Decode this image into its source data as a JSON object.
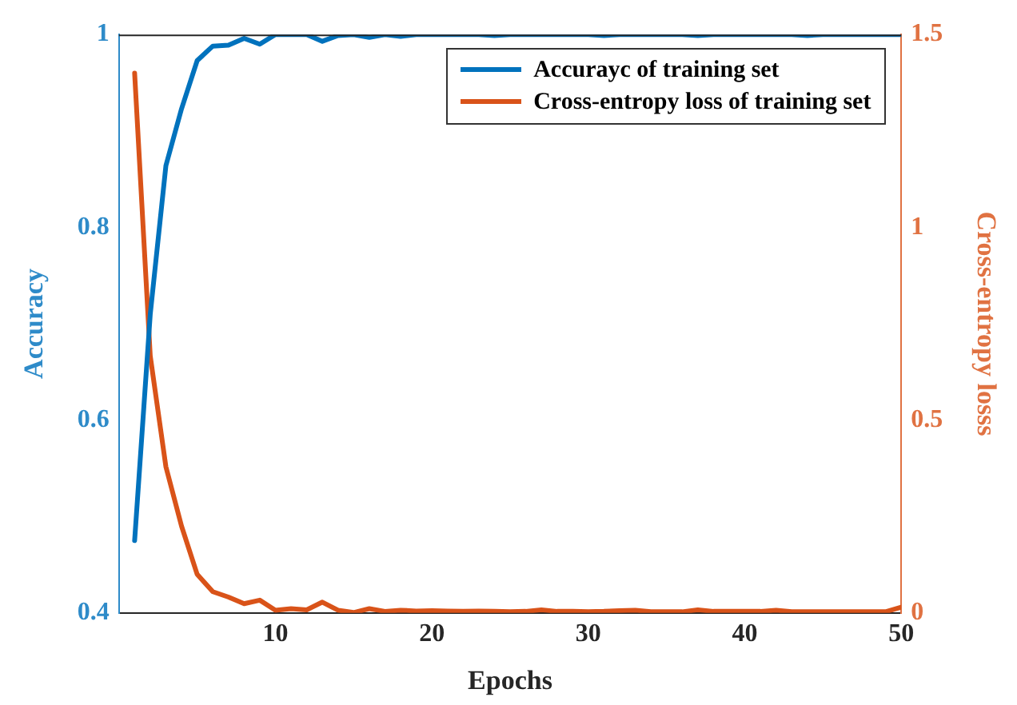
{
  "chart_data": {
    "type": "line",
    "xlabel": "Epochs",
    "ylabel": "Accuracy",
    "y2label": "Cross-entropy losss",
    "x": [
      1,
      2,
      3,
      4,
      5,
      6,
      7,
      8,
      9,
      10,
      11,
      12,
      13,
      14,
      15,
      16,
      17,
      18,
      19,
      20,
      21,
      22,
      23,
      24,
      25,
      26,
      27,
      28,
      29,
      30,
      31,
      32,
      33,
      34,
      35,
      36,
      37,
      38,
      39,
      40,
      41,
      42,
      43,
      44,
      45,
      46,
      47,
      48,
      49,
      50
    ],
    "series": [
      {
        "name": "Accurayc of training set",
        "color": "#0072bd",
        "values": [
          0.475,
          0.71,
          0.864,
          0.923,
          0.973,
          0.988,
          0.989,
          0.996,
          0.99,
          1,
          1,
          1,
          0.993,
          0.999,
          1,
          0.997,
          1,
          0.998,
          1,
          1,
          1,
          1,
          1,
          0.999,
          1,
          1,
          1,
          1,
          1,
          1,
          0.999,
          1,
          1,
          1,
          1,
          1,
          0.999,
          1,
          1,
          1,
          1,
          1,
          1,
          0.999,
          1,
          1,
          1,
          1,
          1,
          1
        ]
      },
      {
        "name": "Cross-entropy loss of training set",
        "color": "#d95319",
        "axis": "y2",
        "values": [
          1.4,
          0.666,
          0.379,
          0.225,
          0.1,
          0.055,
          0.041,
          0.024,
          0.033,
          0.007,
          0.011,
          0.008,
          0.028,
          0.007,
          0.001,
          0.011,
          0.004,
          0.007,
          0.005,
          0.006,
          0.005,
          0.004,
          0.005,
          0.004,
          0.003,
          0.004,
          0.008,
          0.004,
          0.004,
          0.003,
          0.004,
          0.006,
          0.007,
          0.003,
          0.003,
          0.003,
          0.008,
          0.004,
          0.004,
          0.004,
          0.004,
          0.007,
          0.003,
          0.003,
          0.003,
          0.003,
          0.003,
          0.003,
          0.003,
          0.015
        ]
      }
    ],
    "xlim": [
      0,
      50
    ],
    "xticks": [
      10,
      20,
      30,
      40,
      50
    ],
    "ylim": [
      0.4,
      1
    ],
    "yticks": [
      0.4,
      0.6,
      0.8,
      1
    ],
    "y2lim": [
      0,
      1.5
    ],
    "y2ticks": [
      0,
      0.5,
      1,
      1.5
    ],
    "grid": false,
    "legend": "top right",
    "marker": "none",
    "line_style": "solid"
  }
}
